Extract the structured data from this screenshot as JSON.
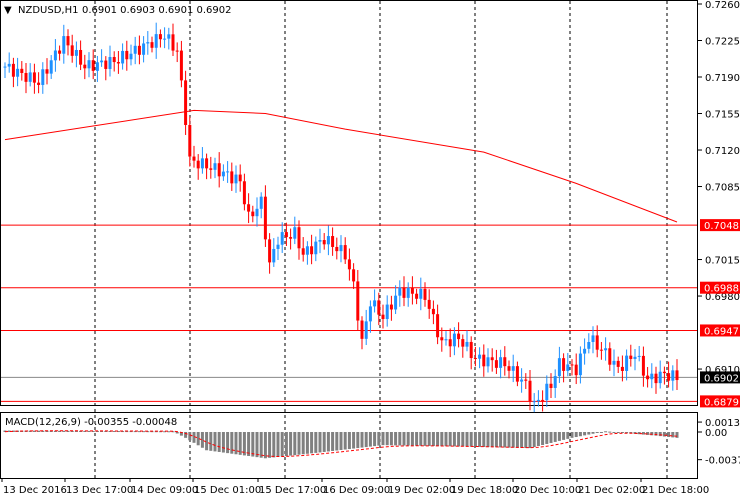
{
  "header": {
    "symbol": "NZDUSD,H1",
    "ohlc": "0.6901 0.6903 0.6901 0.6902"
  },
  "macd": {
    "label": "MACD(12,26,9) -0.00355 -0.00048",
    "ticks": [
      "0.00136",
      "0.00",
      "-0.00379"
    ]
  },
  "colors": {
    "bull": "#1e90ff",
    "bear": "#ff0000",
    "level": "#ff0000",
    "ma": "#ff0000",
    "hist": "#808080"
  },
  "chart_data": {
    "type": "candlestick",
    "price_ticks": [
      "0.7260",
      "0.7225",
      "0.7190",
      "0.7155",
      "0.7120",
      "0.7085",
      "0.7015",
      "0.6980",
      "0.6910"
    ],
    "levels": [
      {
        "value": 0.7048,
        "label": "0.7048"
      },
      {
        "value": 0.6988,
        "label": "0.6988"
      },
      {
        "value": 0.6947,
        "label": "0.6947"
      },
      {
        "value": 0.6879,
        "label": "0.6879"
      }
    ],
    "current": {
      "value": 0.6902,
      "label": "0.6902"
    },
    "time_labels": [
      "13 Dec 2016",
      "13 Dec 17:00",
      "14 Dec 09:00",
      "15 Dec 01:00",
      "15 Dec 17:00",
      "16 Dec 09:00",
      "19 Dec 02:00",
      "19 Dec 18:00",
      "20 Dec 10:00",
      "21 Dec 02:00",
      "21 Dec 18:00"
    ],
    "close_path": [
      [
        0,
        0.72
      ],
      [
        8,
        0.7185
      ],
      [
        14,
        0.7225
      ],
      [
        19,
        0.72
      ],
      [
        26,
        0.7205
      ],
      [
        31,
        0.7215
      ],
      [
        38,
        0.723
      ],
      [
        41,
        0.7215
      ],
      [
        43,
        0.715
      ],
      [
        44,
        0.711
      ],
      [
        48,
        0.7105
      ],
      [
        51,
        0.71
      ],
      [
        56,
        0.709
      ],
      [
        58,
        0.7055
      ],
      [
        61,
        0.707
      ],
      [
        63,
        0.701
      ],
      [
        65,
        0.7035
      ],
      [
        69,
        0.704
      ],
      [
        71,
        0.702
      ],
      [
        76,
        0.7035
      ],
      [
        81,
        0.702
      ],
      [
        83,
        0.699
      ],
      [
        85,
        0.6935
      ],
      [
        87,
        0.6975
      ],
      [
        90,
        0.696
      ],
      [
        94,
        0.6985
      ],
      [
        100,
        0.698
      ],
      [
        104,
        0.6935
      ],
      [
        108,
        0.694
      ],
      [
        112,
        0.692
      ],
      [
        119,
        0.6915
      ],
      [
        124,
        0.6895
      ],
      [
        126,
        0.6875
      ],
      [
        130,
        0.6895
      ],
      [
        132,
        0.6915
      ],
      [
        136,
        0.691
      ],
      [
        139,
        0.694
      ],
      [
        143,
        0.6925
      ],
      [
        146,
        0.691
      ],
      [
        150,
        0.6925
      ],
      [
        153,
        0.69
      ],
      [
        157,
        0.6905
      ],
      [
        160,
        0.6902
      ]
    ],
    "ma_path": [
      [
        0,
        0.713
      ],
      [
        45,
        0.7158
      ],
      [
        62,
        0.7155
      ],
      [
        81,
        0.714
      ],
      [
        114,
        0.7118
      ],
      [
        136,
        0.7088
      ],
      [
        160,
        0.7051
      ]
    ],
    "macd_hist_path": [
      [
        0,
        0.0002
      ],
      [
        40,
        0.0001
      ],
      [
        43,
        -0.0008
      ],
      [
        48,
        -0.0025
      ],
      [
        62,
        -0.0036
      ],
      [
        75,
        -0.0028
      ],
      [
        90,
        -0.0018
      ],
      [
        110,
        -0.002
      ],
      [
        125,
        -0.0022
      ],
      [
        135,
        -0.0008
      ],
      [
        143,
        0.0001
      ],
      [
        155,
        -0.0005
      ],
      [
        160,
        -0.0008
      ]
    ]
  }
}
